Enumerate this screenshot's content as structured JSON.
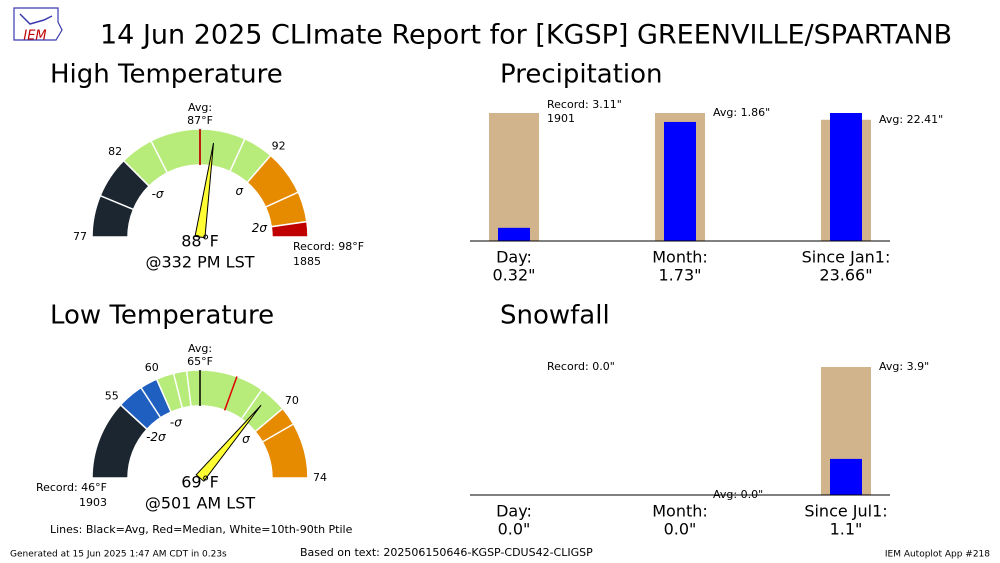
{
  "title": "14 Jun 2025 CLImate Report for [KGSP] GREENVILLE/SPARTANB",
  "logo": "IEM",
  "footer": {
    "legend_note": "Lines: Black=Avg, Red=Median, White=10th-90th Ptile",
    "generated": "Generated at 15 Jun 2025 1:47 AM CDT in 0.23s",
    "source": "Based on text: 202506150646-KGSP-CDUS42-CLIGSP",
    "app": "IEM Autoplot App #218"
  },
  "chart_data": [
    {
      "type": "gauge",
      "title": "High Temperature",
      "lim": [
        77,
        98
      ],
      "ticks": [
        77,
        82,
        92
      ],
      "avg_title": "Avg:",
      "avg": {
        "value": 87,
        "label": "87°F"
      },
      "median": 87,
      "observed": {
        "value": 88,
        "label": "88°F"
      },
      "time": "@332 PM LST",
      "record": {
        "value": 98,
        "label": "Record: 98°F"
      },
      "record_year": "1885",
      "sigma_marks": [
        {
          "value": 82,
          "label": "-σ"
        },
        {
          "value": 92,
          "label": "σ"
        },
        {
          "value": 97,
          "label": "2σ"
        }
      ],
      "bands": [
        {
          "from": 77,
          "to": 82,
          "color": "#1c2630"
        },
        {
          "from": 82,
          "to": 92,
          "color": "#b7eb7a"
        },
        {
          "from": 92,
          "to": 97,
          "color": "#e68a00"
        },
        {
          "from": 97,
          "to": 98,
          "color": "#c00000"
        }
      ],
      "percentile_lines": [
        79.5,
        84,
        90,
        95
      ]
    },
    {
      "type": "gauge",
      "title": "Low Temperature",
      "lim": [
        46,
        74
      ],
      "ticks": [
        55,
        60,
        70,
        74
      ],
      "avg_title": "Avg:",
      "avg": {
        "value": 65,
        "label": "65°F"
      },
      "median": 67,
      "observed": {
        "value": 69,
        "label": "69°F"
      },
      "time": "@501 AM LST",
      "record": {
        "value": 46,
        "label": "Record: 46°F"
      },
      "record_year": "1903",
      "sigma_marks": [
        {
          "value": 55,
          "label": "-2σ"
        },
        {
          "value": 60,
          "label": "-σ"
        },
        {
          "value": 70,
          "label": "σ"
        }
      ],
      "bands": [
        {
          "from": 46,
          "to": 55,
          "color": "#1c2630"
        },
        {
          "from": 55,
          "to": 60,
          "color": "#1f5fbf"
        },
        {
          "from": 60,
          "to": 70,
          "color": "#b7eb7a"
        },
        {
          "from": 70,
          "to": 74,
          "color": "#e68a00"
        }
      ],
      "percentile_lines": [
        58,
        62,
        63.5,
        68.5,
        71
      ]
    },
    {
      "type": "bar",
      "title": "Precipitation",
      "categories": [
        "Day:",
        "Month:",
        "Since Jan1:"
      ],
      "observed": {
        "color": "#0000ff",
        "values": [
          0.32,
          1.73,
          23.66
        ],
        "value_labels": [
          "0.32\"",
          "1.73\"",
          "23.66\""
        ]
      },
      "reference": {
        "color": "#d2b48c",
        "values": [
          3.11,
          1.86,
          22.41
        ],
        "labels": [
          "Record: 3.11\"",
          "Avg: 1.86\"",
          "Avg: 22.41\""
        ],
        "years": [
          "1901",
          null,
          null
        ]
      }
    },
    {
      "type": "bar",
      "title": "Snowfall",
      "categories": [
        "Day:",
        "Month:",
        "Since Jul1:"
      ],
      "observed": {
        "color": "#0000ff",
        "values": [
          0.0,
          0.0,
          1.1
        ],
        "value_labels": [
          "0.0\"",
          "0.0\"",
          "1.1\""
        ]
      },
      "reference": {
        "color": "#d2b48c",
        "values": [
          0.0,
          0.0,
          3.9
        ],
        "labels": [
          "Record: 0.0\"",
          "Avg: 0.0\"",
          "Avg: 3.9\""
        ],
        "years": [
          null,
          null,
          null
        ]
      }
    }
  ]
}
